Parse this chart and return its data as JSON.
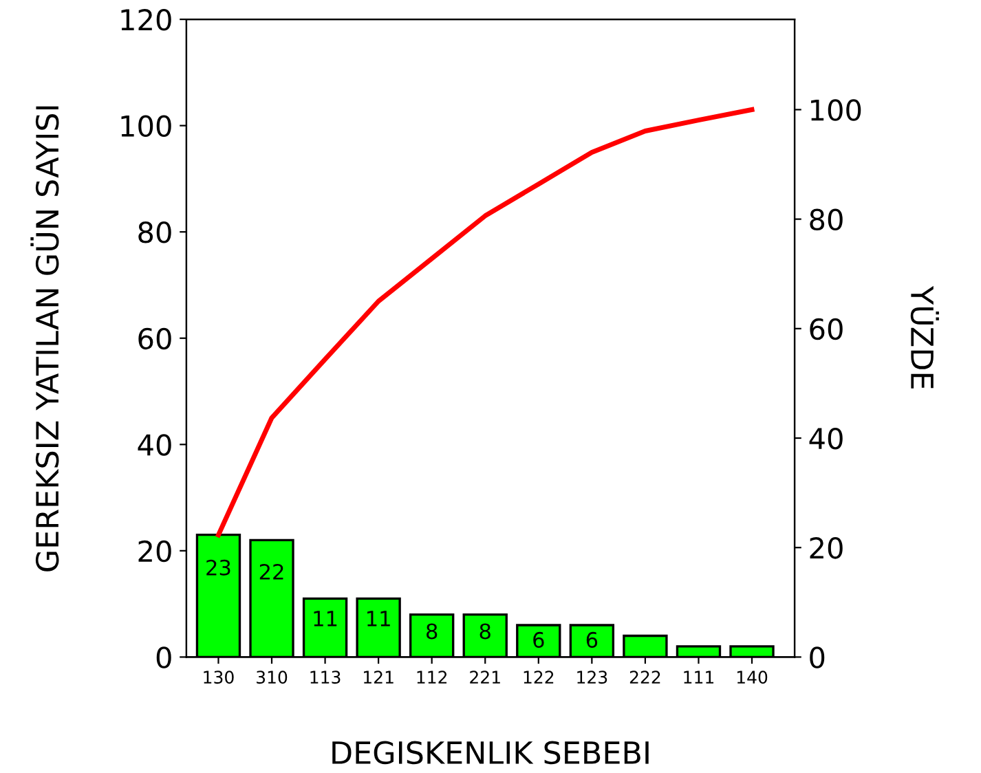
{
  "chart_data": {
    "type": "bar",
    "xlabel": "DEGISKENLIK SEBEBI",
    "ylabel": "GEREKSIZ YATILAN GÜN SAYISI",
    "y2label": "YÜZDE",
    "categories": [
      "130",
      "310",
      "113",
      "121",
      "112",
      "221",
      "122",
      "123",
      "222",
      "111",
      "140"
    ],
    "series": [
      {
        "color": "#00ff00",
        "values": [
          23,
          22,
          11,
          11,
          8,
          8,
          6,
          6,
          4,
          2,
          2
        ],
        "value_labels": [
          "23",
          "22",
          "11",
          "11",
          "8",
          "8",
          "6",
          "6",
          null,
          null,
          null
        ]
      },
      {
        "type": "line",
        "axis": "y2",
        "color": "#ff0000",
        "values": [
          22.3,
          43.7,
          54.4,
          65.0,
          72.8,
          80.6,
          86.4,
          92.2,
          96.1,
          98.1,
          100
        ]
      }
    ],
    "ylim": [
      0,
      120
    ],
    "yticks": [
      0,
      20,
      40,
      60,
      80,
      100,
      120
    ],
    "y2lim": [
      0,
      116.5
    ],
    "y2ticks": [
      0,
      20,
      40,
      60,
      80,
      100
    ],
    "grid": false,
    "legend": false,
    "marker": "none",
    "line_style": "solid"
  }
}
